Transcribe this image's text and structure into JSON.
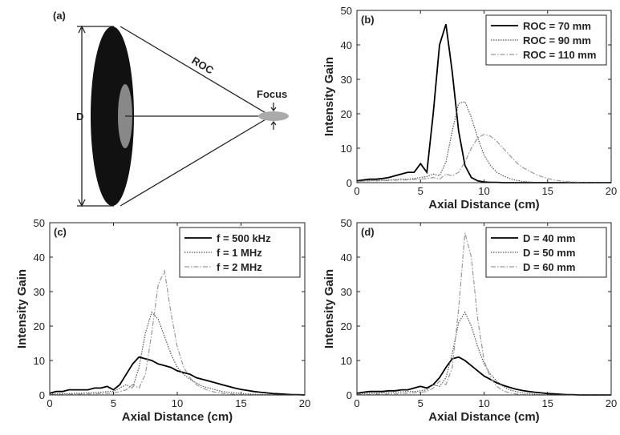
{
  "diagram": {
    "label": "(a)",
    "roc": "ROC",
    "focus": "Focus",
    "d": "D"
  },
  "chart_data": [
    {
      "type": "line",
      "panel_label": "(b)",
      "xlabel": "Axial Distance (cm)",
      "ylabel": "Intensity Gain",
      "xlim": [
        0,
        20
      ],
      "ylim": [
        0,
        50
      ],
      "xticks": [
        0,
        5,
        10,
        15,
        20
      ],
      "yticks": [
        0,
        10,
        20,
        30,
        40,
        50
      ],
      "legend": "upper right",
      "x": [
        0,
        0.5,
        1,
        1.5,
        2,
        2.5,
        3,
        3.5,
        4,
        4.5,
        5,
        5.5,
        6,
        6.5,
        7,
        7.5,
        8,
        8.5,
        9,
        9.5,
        10,
        10.5,
        11,
        11.5,
        12,
        12.5,
        13,
        13.5,
        14,
        14.5,
        15,
        15.5,
        16,
        16.5,
        17,
        17.5,
        18,
        18.5,
        19,
        19.5,
        20
      ],
      "series": [
        {
          "name": "ROC = 70 mm",
          "color": "#000000",
          "dash": "solid",
          "values": [
            0.5,
            0.8,
            1,
            1,
            1.2,
            1.5,
            2,
            2.5,
            3,
            3,
            5.5,
            3,
            20,
            40,
            46,
            32,
            15,
            5,
            1.5,
            0.5,
            0.2,
            0.1,
            0.1,
            0,
            0,
            0,
            0,
            0,
            0,
            0,
            0,
            0,
            0,
            0,
            0,
            0,
            0,
            0,
            0,
            0,
            0
          ]
        },
        {
          "name": "ROC = 90 mm",
          "color": "#555555",
          "dash": "dotted",
          "values": [
            0.3,
            0.5,
            0.6,
            0.7,
            0.7,
            0.8,
            0.9,
            1,
            1,
            1.2,
            1.5,
            1.8,
            2.5,
            2,
            6,
            15,
            23,
            23.5,
            19,
            13,
            8,
            5,
            3,
            2,
            1.2,
            0.7,
            0.4,
            0.2,
            0.1,
            0,
            0,
            0,
            0,
            0,
            0,
            0,
            0,
            0,
            0,
            0,
            0
          ]
        },
        {
          "name": "ROC = 110 mm",
          "color": "#999999",
          "dash": "dashdot",
          "values": [
            0.3,
            0.4,
            0.5,
            0.5,
            0.6,
            0.6,
            0.7,
            0.8,
            0.8,
            0.9,
            1,
            1.2,
            1.5,
            1,
            2.5,
            2,
            3,
            6,
            10,
            13,
            14,
            13.5,
            12,
            10,
            8,
            6,
            4.5,
            3.5,
            2.5,
            1.8,
            1.2,
            0.8,
            0.5,
            0.3,
            0.2,
            0.1,
            0.05,
            0,
            0,
            0,
            0
          ]
        }
      ]
    },
    {
      "type": "line",
      "panel_label": "(c)",
      "xlabel": "Axial Distance (cm)",
      "ylabel": "Intensity Gain",
      "xlim": [
        0,
        20
      ],
      "ylim": [
        0,
        50
      ],
      "xticks": [
        0,
        5,
        10,
        15,
        20
      ],
      "yticks": [
        0,
        10,
        20,
        30,
        40,
        50
      ],
      "legend": "upper right",
      "x": [
        0,
        0.5,
        1,
        1.5,
        2,
        2.5,
        3,
        3.5,
        4,
        4.5,
        5,
        5.5,
        6,
        6.5,
        7,
        7.5,
        8,
        8.5,
        9,
        9.5,
        10,
        10.5,
        11,
        11.5,
        12,
        12.5,
        13,
        13.5,
        14,
        14.5,
        15,
        15.5,
        16,
        16.5,
        17,
        17.5,
        18,
        18.5,
        19,
        19.5,
        20
      ],
      "series": [
        {
          "name": "f = 500 kHz",
          "color": "#000000",
          "dash": "solid",
          "values": [
            0.5,
            1,
            1,
            1.5,
            1.5,
            1.5,
            1.5,
            2,
            2,
            2.5,
            1.5,
            3,
            6,
            9,
            11,
            10.5,
            10,
            9,
            8.5,
            8,
            7,
            6.5,
            6,
            5,
            4.5,
            4,
            3.5,
            3,
            2.5,
            2,
            1.6,
            1.3,
            1,
            0.8,
            0.6,
            0.4,
            0.3,
            0.2,
            0.1,
            0.1,
            0
          ]
        },
        {
          "name": "f = 1 MHz",
          "color": "#555555",
          "dash": "dotted",
          "values": [
            0.3,
            0.3,
            0.4,
            0.4,
            0.5,
            0.5,
            0.6,
            0.7,
            0.8,
            1,
            1,
            2,
            3,
            2,
            8,
            18,
            24,
            22,
            17,
            12,
            8,
            6,
            4.5,
            3.5,
            2.5,
            2,
            1.5,
            1,
            0.8,
            0.6,
            0.4,
            0.3,
            0.2,
            0.1,
            0.1,
            0,
            0,
            0,
            0,
            0,
            0
          ]
        },
        {
          "name": "f = 2 MHz",
          "color": "#999999",
          "dash": "dashdot",
          "values": [
            0.1,
            0.1,
            0.1,
            0.2,
            0.2,
            0.2,
            0.3,
            0.3,
            0.4,
            0.5,
            0.5,
            1,
            1.5,
            3,
            2,
            6,
            18,
            32,
            36,
            24,
            14,
            8,
            5,
            3,
            2,
            1.2,
            0.8,
            0.5,
            0.3,
            0.2,
            0.1,
            0,
            0,
            0,
            0,
            0,
            0,
            0,
            0,
            0,
            0
          ]
        }
      ]
    },
    {
      "type": "line",
      "panel_label": "(d)",
      "xlabel": "Axial Distance (cm)",
      "ylabel": "Intensity Gain",
      "xlim": [
        0,
        20
      ],
      "ylim": [
        0,
        50
      ],
      "xticks": [
        0,
        5,
        10,
        15,
        20
      ],
      "yticks": [
        0,
        10,
        20,
        30,
        40,
        50
      ],
      "legend": "upper right",
      "x": [
        0,
        0.5,
        1,
        1.5,
        2,
        2.5,
        3,
        3.5,
        4,
        4.5,
        5,
        5.5,
        6,
        6.5,
        7,
        7.5,
        8,
        8.5,
        9,
        9.5,
        10,
        10.5,
        11,
        11.5,
        12,
        12.5,
        13,
        13.5,
        14,
        14.5,
        15,
        15.5,
        16,
        16.5,
        17,
        17.5,
        18,
        18.5,
        19,
        19.5,
        20
      ],
      "series": [
        {
          "name": "D = 40 mm",
          "color": "#000000",
          "dash": "solid",
          "values": [
            0.5,
            0.8,
            1,
            1,
            1,
            1.2,
            1.2,
            1.5,
            1.5,
            2,
            2.5,
            2,
            3,
            5,
            8,
            10.5,
            11,
            10,
            8.5,
            7,
            5.5,
            4.5,
            3.5,
            2.8,
            2.2,
            1.7,
            1.3,
            1,
            0.8,
            0.6,
            0.4,
            0.3,
            0.2,
            0.1,
            0.1,
            0,
            0,
            0,
            0,
            0,
            0
          ]
        },
        {
          "name": "D = 50 mm",
          "color": "#555555",
          "dash": "dotted",
          "values": [
            0.3,
            0.4,
            0.5,
            0.5,
            0.6,
            0.7,
            0.8,
            0.9,
            1,
            1,
            1.2,
            1.5,
            3,
            2.5,
            5,
            12,
            21,
            24,
            20,
            14,
            9,
            6,
            4,
            2.5,
            1.5,
            1,
            0.6,
            0.4,
            0.2,
            0.1,
            0,
            0,
            0,
            0,
            0,
            0,
            0,
            0,
            0,
            0,
            0
          ]
        },
        {
          "name": "D = 60 mm",
          "color": "#999999",
          "dash": "dashdot",
          "values": [
            0.1,
            0.1,
            0.1,
            0.2,
            0.2,
            0.3,
            0.3,
            0.4,
            0.5,
            0.6,
            0.8,
            1,
            2,
            4,
            3,
            8,
            25,
            47,
            40,
            22,
            10,
            5,
            2.5,
            1.2,
            0.6,
            0.3,
            0.1,
            0,
            0,
            0,
            0,
            0,
            0,
            0,
            0,
            0,
            0,
            0,
            0,
            0,
            0
          ]
        }
      ]
    }
  ]
}
